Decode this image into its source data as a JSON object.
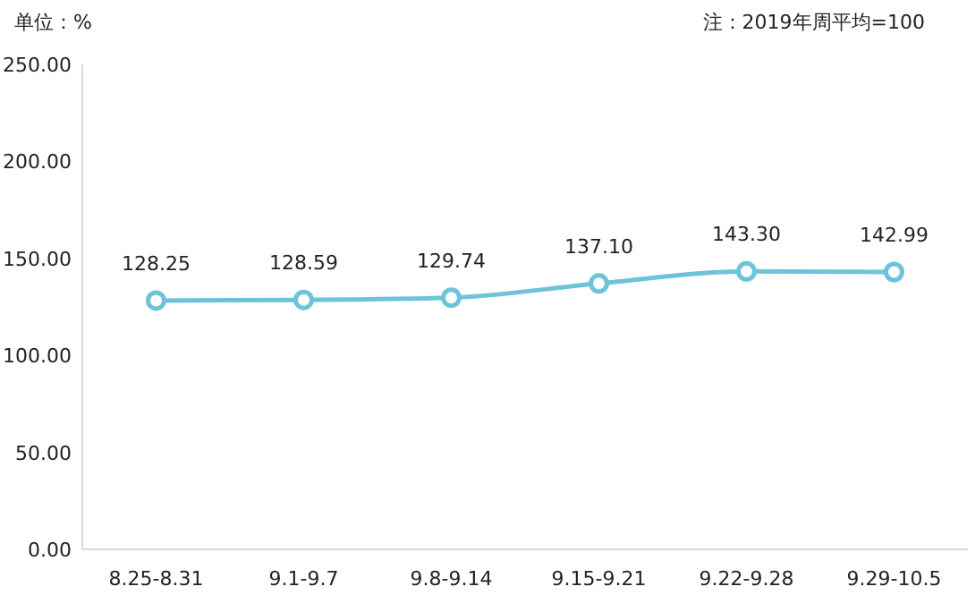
{
  "chart_data": {
    "type": "line",
    "annotations": [
      "单位：%",
      "注：2019年周平均=100"
    ],
    "categories": [
      "8.25-8.31",
      "9.1-9.7",
      "9.8-9.14",
      "9.15-9.21",
      "9.22-9.28",
      "9.29-10.5"
    ],
    "series": [
      {
        "color": "#6ec3da",
        "values": [
          128.25,
          128.59,
          129.74,
          137.1,
          143.3,
          142.99
        ],
        "value_labels": [
          "128.25",
          "128.59",
          "129.74",
          "137.10",
          "143.30",
          "142.99"
        ]
      }
    ],
    "ylim": [
      0,
      250
    ],
    "yticks": [
      {
        "value": 0,
        "label": "0.00"
      },
      {
        "value": 50,
        "label": "50.00"
      },
      {
        "value": 100,
        "label": "100.00"
      },
      {
        "value": 150,
        "label": "150.00"
      },
      {
        "value": 200,
        "label": "200.00"
      },
      {
        "value": 250,
        "label": "250.00"
      }
    ],
    "grid": false,
    "marker": "circle",
    "line_style": "solid"
  }
}
